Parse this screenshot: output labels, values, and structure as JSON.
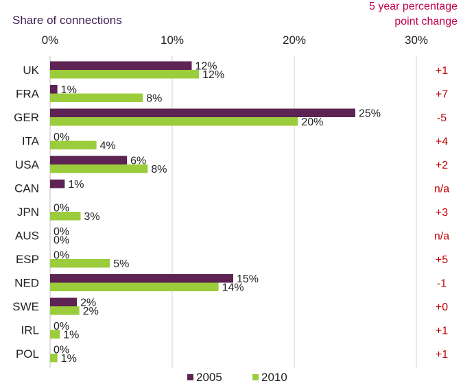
{
  "chart_data": {
    "type": "bar",
    "orientation": "horizontal",
    "title": "Share of connections",
    "change_header": "5 year percentage point change",
    "change_header_lines": [
      "5 year percentage",
      "point change"
    ],
    "xlim": [
      0,
      30
    ],
    "xticks": [
      0,
      10,
      20,
      30
    ],
    "xtick_labels": [
      "0%",
      "10%",
      "20%",
      "30%"
    ],
    "grid": true,
    "legend_position": "bottom",
    "categories": [
      "UK",
      "FRA",
      "GER",
      "ITA",
      "USA",
      "CAN",
      "JPN",
      "AUS",
      "ESP",
      "NED",
      "SWE",
      "IRL",
      "POL"
    ],
    "series": [
      {
        "name": "2005",
        "color": "#5c2353",
        "values": [
          11.6,
          0.6,
          25,
          0,
          6.3,
          1.2,
          0,
          0,
          0,
          15,
          2.2,
          0,
          0
        ],
        "labels": [
          "12%",
          "1%",
          "25%",
          "0%",
          "6%",
          "1%",
          "0%",
          "0%",
          "0%",
          "15%",
          "2%",
          "0%",
          "0%"
        ]
      },
      {
        "name": "2010",
        "color": "#9bcc3c",
        "values": [
          12.2,
          7.6,
          20.3,
          3.8,
          8,
          null,
          2.5,
          0,
          4.9,
          13.8,
          2.4,
          0.8,
          0.6
        ],
        "labels": [
          "12%",
          "8%",
          "20%",
          "4%",
          "8%",
          null,
          "3%",
          "0%",
          "5%",
          "14%",
          "2%",
          "1%",
          "1%"
        ]
      }
    ],
    "change_labels": [
      "+1",
      "+7",
      "-5",
      "+4",
      "+2",
      "n/a",
      "+3",
      "n/a",
      "+5",
      "-1",
      "+0",
      "+1",
      "+1"
    ]
  }
}
